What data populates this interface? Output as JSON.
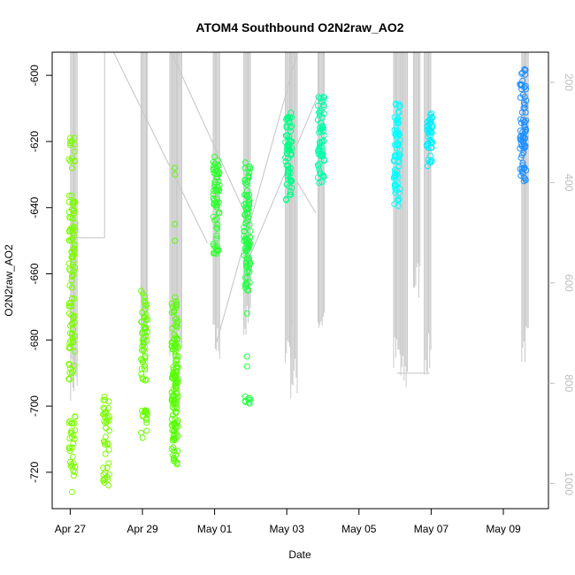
{
  "chart_data": {
    "type": "scatter",
    "title": "ATOM4 Southbound O2N2raw_AO2",
    "xlabel": "Date",
    "ylabel": "O2N2raw_AO2",
    "x_ticks": [
      "Apr 27",
      "Apr 29",
      "May 01",
      "May 03",
      "May 05",
      "May 07",
      "May 09"
    ],
    "x_tick_days": [
      0,
      2,
      4,
      6,
      8,
      10,
      12
    ],
    "x_range_days": [
      -0.5,
      13.25
    ],
    "y_ticks": [
      -600,
      -620,
      -640,
      -660,
      -680,
      -700,
      -720
    ],
    "ylim": [
      -731,
      -593
    ],
    "y2_ticks": [
      "200",
      "400",
      "600",
      "800",
      "1000"
    ],
    "y2_tick_values": [
      200,
      400,
      600,
      800,
      1000
    ],
    "y2lim": [
      1050,
      140
    ],
    "clusters": [
      {
        "day": 0.05,
        "color": "#7CFC00",
        "ranges": [
          [
            -626,
            -618
          ],
          [
            -722,
            -703
          ],
          [
            -692,
            -636
          ]
        ],
        "outliers": [
          -726,
          -628,
          -646,
          -675,
          -678,
          -690
        ]
      },
      {
        "day": 1.0,
        "color": "#7CFC00",
        "ranges": [
          [
            -724,
            -697
          ]
        ],
        "outliers": []
      },
      {
        "day": 2.05,
        "color": "#66FF00",
        "ranges": [
          [
            -710,
            -700
          ],
          [
            -695,
            -665
          ]
        ],
        "outliers": []
      },
      {
        "day": 2.9,
        "color": "#55FF00",
        "ranges": [
          [
            -718,
            -690
          ],
          [
            -695,
            -667
          ],
          [
            -710,
            -680
          ]
        ],
        "outliers": [
          -628,
          -645,
          -650,
          -630
        ]
      },
      {
        "day": 4.05,
        "color": "#33FF33",
        "ranges": [
          [
            -654,
            -624
          ],
          [
            -640,
            -628
          ]
        ],
        "outliers": []
      },
      {
        "day": 4.9,
        "color": "#22FF44",
        "ranges": [
          [
            -665,
            -626
          ],
          [
            -660,
            -640
          ],
          [
            -700,
            -697
          ]
        ],
        "outliers": [
          -672,
          -685,
          -688
        ]
      },
      {
        "day": 6.05,
        "color": "#00FF88",
        "ranges": [
          [
            -638,
            -610
          ],
          [
            -632,
            -620
          ]
        ],
        "outliers": []
      },
      {
        "day": 6.95,
        "color": "#00FFAA",
        "ranges": [
          [
            -633,
            -606
          ],
          [
            -625,
            -612
          ]
        ],
        "outliers": []
      },
      {
        "day": 9.05,
        "color": "#00FFFF",
        "ranges": [
          [
            -640,
            -608
          ],
          [
            -630,
            -615
          ]
        ],
        "outliers": []
      },
      {
        "day": 9.95,
        "color": "#00EEFF",
        "ranges": [
          [
            -629,
            -610
          ],
          [
            -622,
            -614
          ]
        ],
        "outliers": []
      },
      {
        "day": 12.55,
        "color": "#1E90FF",
        "ranges": [
          [
            -632,
            -598
          ],
          [
            -625,
            -612
          ]
        ],
        "outliers": []
      }
    ],
    "depth_profiles": [
      {
        "day": 0.1,
        "max_depth": 835
      },
      {
        "day": 2.05,
        "max_depth": 800
      },
      {
        "day": 2.85,
        "max_depth": 780
      },
      {
        "day": 3.0,
        "max_depth": 780
      },
      {
        "day": 4.05,
        "max_depth": 765
      },
      {
        "day": 4.9,
        "max_depth": 730
      },
      {
        "day": 6.05,
        "max_depth": 765
      },
      {
        "day": 6.2,
        "max_depth": 835
      },
      {
        "day": 6.95,
        "max_depth": 715
      },
      {
        "day": 9.05,
        "max_depth": 790
      },
      {
        "day": 9.25,
        "max_depth": 830
      },
      {
        "day": 9.6,
        "max_depth": 640
      },
      {
        "day": 9.9,
        "max_depth": 790
      },
      {
        "day": 12.6,
        "max_depth": 770
      }
    ],
    "connector_lines": [
      [
        [
          0.1,
          140
        ],
        [
          0.1,
          510
        ],
        [
          0.95,
          510
        ],
        [
          0.95,
          140
        ]
      ],
      [
        [
          1.2,
          140
        ],
        [
          3.8,
          520
        ]
      ],
      [
        [
          2.8,
          140
        ],
        [
          4.9,
          470
        ]
      ],
      [
        [
          4.05,
          720
        ],
        [
          6.3,
          140
        ]
      ],
      [
        [
          4.9,
          560
        ],
        [
          6.9,
          220
        ]
      ],
      [
        [
          6.3,
          400
        ],
        [
          6.8,
          460
        ]
      ],
      [
        [
          6.1,
          140
        ],
        [
          9.05,
          140
        ]
      ],
      [
        [
          9.05,
          780
        ],
        [
          9.95,
          780
        ]
      ]
    ],
    "legend": "none",
    "grid": false
  }
}
